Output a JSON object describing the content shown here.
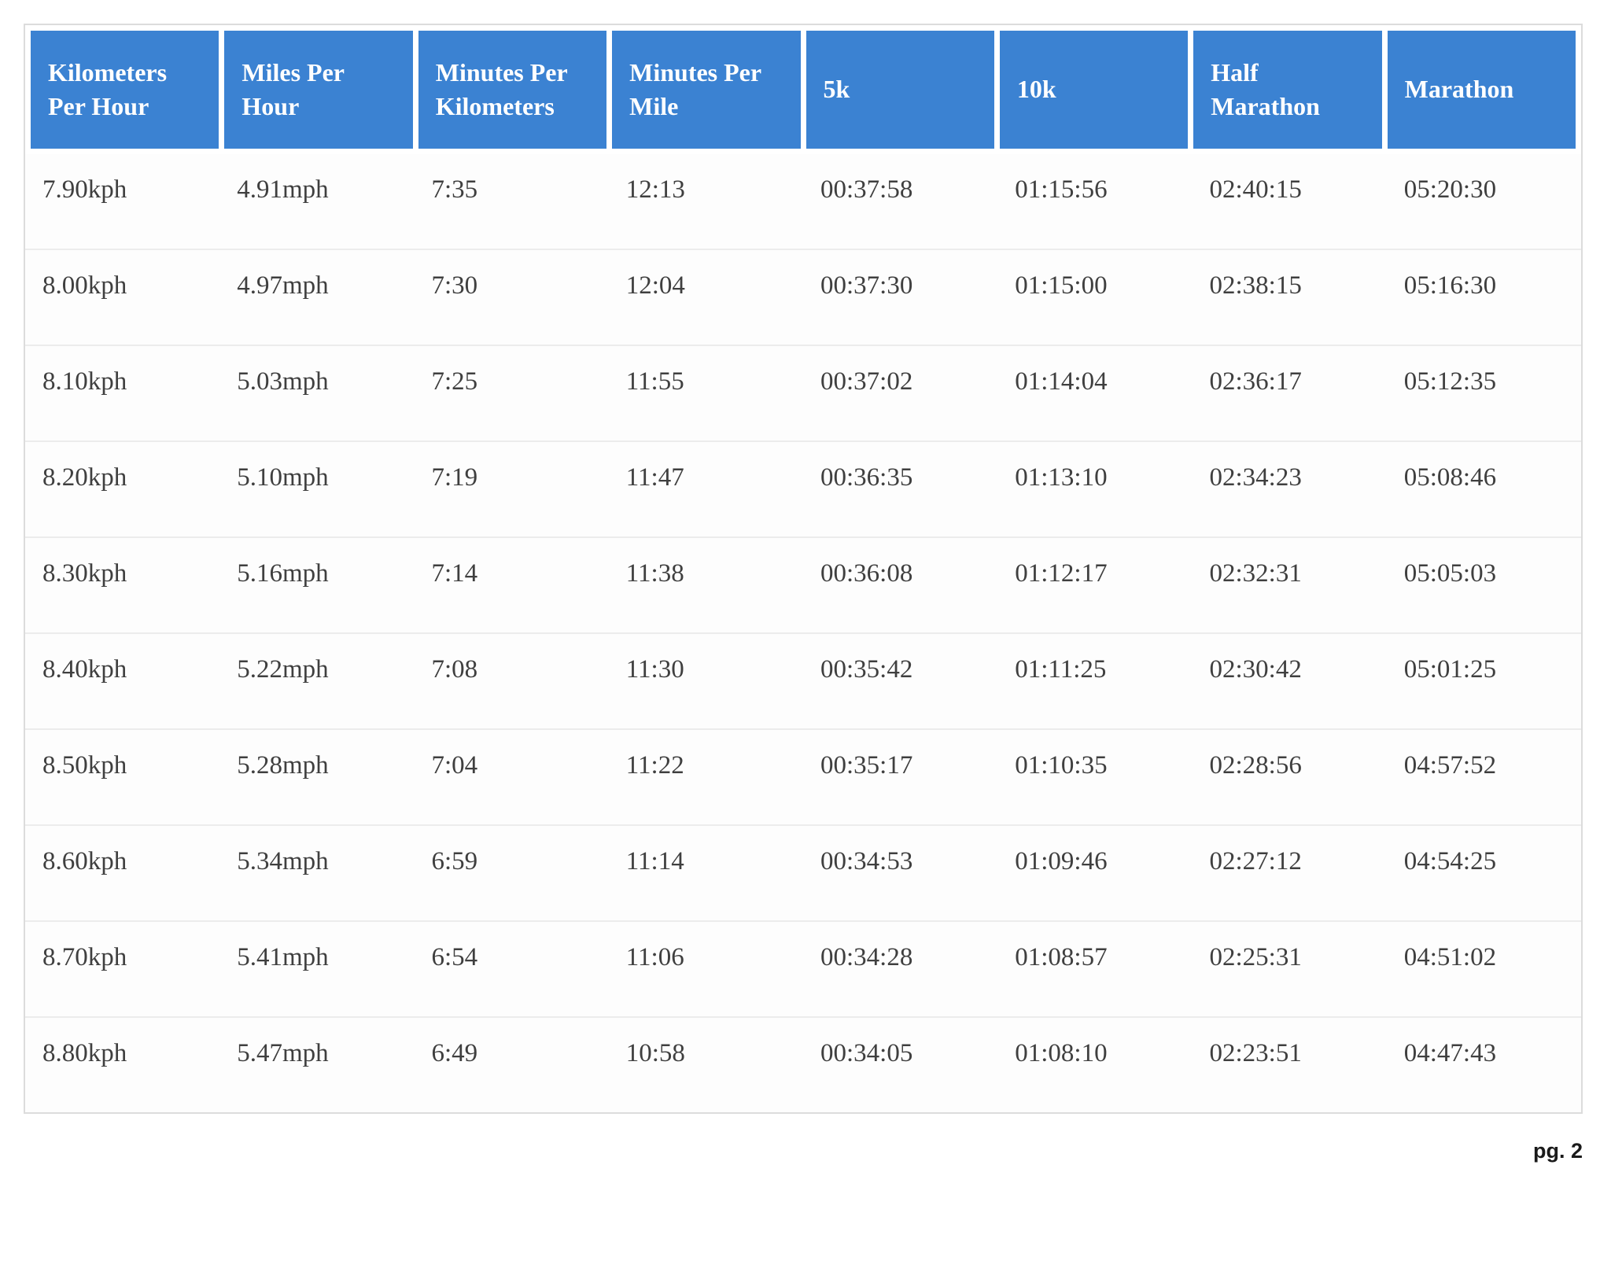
{
  "page": {
    "page_number_label": "pg. 2"
  },
  "colors": {
    "header_bg": "#3b82d2",
    "header_text": "#ffffff",
    "body_text": "#3f3f3f",
    "row_bg": "#fdfdfd",
    "border": "#dcdcdc"
  },
  "table": {
    "columns": [
      "Kilometers Per Hour",
      "Miles Per Hour",
      "Minutes Per Kilometers",
      "Minutes Per Mile",
      "5k",
      "10k",
      "Half Marathon",
      "Marathon"
    ],
    "rows": [
      [
        "7.90kph",
        "4.91mph",
        "7:35",
        "12:13",
        "00:37:58",
        "01:15:56",
        "02:40:15",
        "05:20:30"
      ],
      [
        "8.00kph",
        "4.97mph",
        "7:30",
        "12:04",
        "00:37:30",
        "01:15:00",
        "02:38:15",
        "05:16:30"
      ],
      [
        "8.10kph",
        "5.03mph",
        "7:25",
        "11:55",
        "00:37:02",
        "01:14:04",
        "02:36:17",
        "05:12:35"
      ],
      [
        "8.20kph",
        "5.10mph",
        "7:19",
        "11:47",
        "00:36:35",
        "01:13:10",
        "02:34:23",
        "05:08:46"
      ],
      [
        "8.30kph",
        "5.16mph",
        "7:14",
        "11:38",
        "00:36:08",
        "01:12:17",
        "02:32:31",
        "05:05:03"
      ],
      [
        "8.40kph",
        "5.22mph",
        "7:08",
        "11:30",
        "00:35:42",
        "01:11:25",
        "02:30:42",
        "05:01:25"
      ],
      [
        "8.50kph",
        "5.28mph",
        "7:04",
        "11:22",
        "00:35:17",
        "01:10:35",
        "02:28:56",
        "04:57:52"
      ],
      [
        "8.60kph",
        "5.34mph",
        "6:59",
        "11:14",
        "00:34:53",
        "01:09:46",
        "02:27:12",
        "04:54:25"
      ],
      [
        "8.70kph",
        "5.41mph",
        "6:54",
        "11:06",
        "00:34:28",
        "01:08:57",
        "02:25:31",
        "04:51:02"
      ],
      [
        "8.80kph",
        "5.47mph",
        "6:49",
        "10:58",
        "00:34:05",
        "01:08:10",
        "02:23:51",
        "04:47:43"
      ]
    ]
  }
}
